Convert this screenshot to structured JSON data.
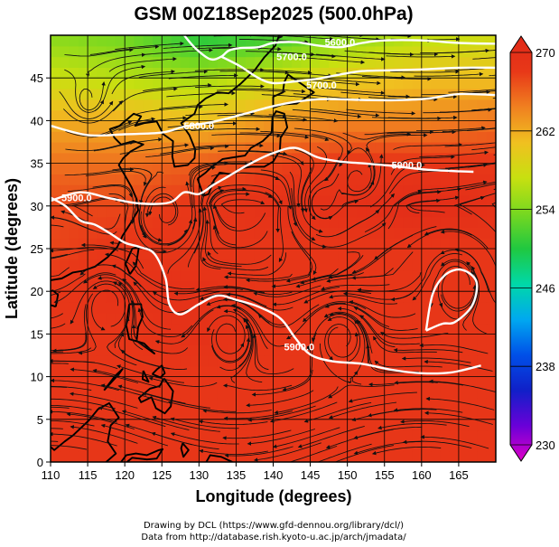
{
  "title": "GSM 00Z18Sep2025 (500.0hPa)",
  "credits": {
    "line1": "Drawing by DCL (https://www.gfd-dennou.org/library/dcl/)",
    "line2": "Data from http://database.rish.kyoto-u.ac.jp/arch/jmadata/"
  },
  "chart_data": {
    "type": "heatmap",
    "title": "GSM 00Z18Sep2025 (500.0hPa)",
    "xlabel": "Longitude (degrees)",
    "ylabel": "Latitude  (degrees)",
    "xlim": [
      110,
      170
    ],
    "ylim": [
      0,
      50
    ],
    "x_ticks": [
      110,
      115,
      120,
      125,
      130,
      135,
      140,
      145,
      150,
      155,
      160,
      165
    ],
    "y_ticks": [
      0,
      5,
      10,
      15,
      20,
      25,
      30,
      35,
      40,
      45
    ],
    "grid": true,
    "colorbar": {
      "min": 230,
      "max": 270,
      "tick_values": [
        230,
        238,
        246,
        254,
        262,
        270
      ],
      "tick_labels": [
        "230",
        "238",
        "246",
        "254",
        "262",
        "270"
      ],
      "colors": [
        "#e000c8",
        "#6a00d8",
        "#1020c8",
        "#0050e8",
        "#00a8f0",
        "#00d8a8",
        "#20c840",
        "#78d820",
        "#c8e010",
        "#f0c020",
        "#f08020",
        "#e83818",
        "#e02818"
      ]
    },
    "temperature_field": {
      "description": "air temperature (K) at 500 hPa",
      "lats": [
        0,
        5,
        10,
        15,
        20,
        25,
        30,
        35,
        40,
        45,
        50
      ],
      "lons": [
        110,
        120,
        130,
        140,
        150,
        160,
        170
      ],
      "values": [
        [
          267,
          267,
          267,
          267,
          267,
          267,
          267
        ],
        [
          267,
          267,
          267,
          267,
          267,
          267,
          267
        ],
        [
          267,
          267,
          267,
          267,
          267,
          267,
          267
        ],
        [
          267,
          267,
          268,
          267,
          267,
          267,
          267
        ],
        [
          267,
          268,
          268,
          267,
          267,
          267,
          267
        ],
        [
          266,
          267,
          267,
          267,
          267,
          267,
          267
        ],
        [
          266,
          266,
          267,
          268,
          268,
          269,
          268
        ],
        [
          264,
          264,
          265,
          266,
          267,
          267,
          267
        ],
        [
          261,
          261,
          260,
          262,
          263,
          263,
          264
        ],
        [
          257,
          256,
          255,
          257,
          259,
          260,
          260
        ],
        [
          254,
          253,
          250,
          251,
          254,
          256,
          257
        ]
      ]
    },
    "contours": [
      {
        "label": "5900.0",
        "points": [
          [
            109.5,
            31.2
          ],
          [
            112,
            30
          ],
          [
            114,
            28.3
          ],
          [
            116,
            27.8
          ],
          [
            118,
            26.8
          ],
          [
            120,
            25.7
          ],
          [
            122,
            25.2
          ],
          [
            124,
            24.4
          ],
          [
            125.5,
            21.5
          ],
          [
            126,
            18.5
          ],
          [
            127.5,
            17.3
          ],
          [
            130,
            18.5
          ],
          [
            132.5,
            19.5
          ],
          [
            135,
            19
          ],
          [
            138,
            18.2
          ],
          [
            141,
            16.8
          ],
          [
            143,
            14.5
          ],
          [
            145,
            12.6
          ],
          [
            148,
            11.8
          ],
          [
            152,
            11.5
          ],
          [
            156,
            10.8
          ],
          [
            160,
            10.4
          ],
          [
            164,
            10.5
          ],
          [
            168,
            11.3
          ]
        ]
      },
      {
        "label": "5900.0",
        "points": [
          [
            110,
            30.6
          ],
          [
            114,
            31.6
          ],
          [
            118,
            30.9
          ],
          [
            122,
            30.3
          ],
          [
            126,
            30.4
          ],
          [
            128,
            31.6
          ],
          [
            130,
            31.4
          ],
          [
            132,
            32.5
          ],
          [
            134,
            33.5
          ],
          [
            137,
            35
          ],
          [
            140,
            36.2
          ],
          [
            143,
            36.8
          ],
          [
            146,
            35.7
          ],
          [
            149,
            35.2
          ],
          [
            152,
            35
          ],
          [
            156,
            34.7
          ],
          [
            160,
            34.3
          ],
          [
            164,
            34.1
          ],
          [
            167,
            34
          ]
        ]
      },
      {
        "label": "",
        "points": [
          [
            160.6,
            15.4
          ],
          [
            161.5,
            19.7
          ],
          [
            163.3,
            22
          ],
          [
            165.5,
            22.5
          ],
          [
            167.4,
            21.1
          ],
          [
            166.8,
            18.3
          ],
          [
            164.5,
            16.4
          ],
          [
            162.8,
            16.2
          ],
          [
            160.6,
            15.4
          ]
        ]
      },
      {
        "label": "5800.0",
        "points": [
          [
            110,
            39.4
          ],
          [
            115,
            38.3
          ],
          [
            120,
            38.4
          ],
          [
            125,
            38.6
          ],
          [
            128,
            39.3
          ],
          [
            131,
            39.7
          ],
          [
            134,
            40.3
          ],
          [
            137,
            41
          ],
          [
            140,
            41.7
          ],
          [
            143,
            42.2
          ],
          [
            146,
            42.5
          ],
          [
            149,
            42.5
          ],
          [
            153,
            42.4
          ],
          [
            157,
            42.4
          ],
          [
            161,
            42.6
          ],
          [
            165,
            43.1
          ],
          [
            170,
            43
          ]
        ]
      },
      {
        "label": "5700.0",
        "points": [
          [
            133,
            47.5
          ],
          [
            135.5,
            46.4
          ],
          [
            138,
            45
          ],
          [
            140,
            44.4
          ],
          [
            143,
            44.6
          ],
          [
            146,
            44.9
          ],
          [
            149,
            45.4
          ],
          [
            152,
            45.8
          ],
          [
            156,
            45.9
          ],
          [
            160,
            46
          ],
          [
            165,
            46.2
          ],
          [
            170,
            46.2
          ]
        ]
      },
      {
        "label": "5600.0",
        "points": [
          [
            128,
            50
          ],
          [
            129.5,
            48.5
          ],
          [
            131.5,
            47.2
          ],
          [
            133,
            47.5
          ],
          [
            134,
            48.2
          ],
          [
            135.5,
            48.5
          ],
          [
            138,
            48.6
          ],
          [
            140,
            49.1
          ],
          [
            143,
            49.2
          ],
          [
            146,
            48.8
          ],
          [
            149,
            48.6
          ],
          [
            152,
            49.1
          ],
          [
            155,
            49.4
          ],
          [
            160,
            49.4
          ],
          [
            165,
            49.1
          ],
          [
            170,
            49
          ]
        ]
      }
    ],
    "contour_labels": [
      {
        "text": "5900.0",
        "lon": 113.5,
        "lat": 31
      },
      {
        "text": "5900.0",
        "lon": 143.5,
        "lat": 13.5
      },
      {
        "text": "5900.0",
        "lon": 158,
        "lat": 34.8
      },
      {
        "text": "5800.0",
        "lon": 130,
        "lat": 39.4
      },
      {
        "text": "5700.0",
        "lon": 146.5,
        "lat": 44.2
      },
      {
        "text": "5600.0",
        "lon": 149,
        "lat": 49.2
      },
      {
        "text": "5700.0",
        "lon": 142.5,
        "lat": 47.5
      }
    ],
    "circulations": [
      {
        "lon": 134,
        "lat": 15.2
      },
      {
        "lon": 117.8,
        "lat": 18.8
      },
      {
        "lon": 164.8,
        "lat": 21.2
      },
      {
        "lon": 146.5,
        "lat": 30.3
      },
      {
        "lon": 151.5,
        "lat": 33
      },
      {
        "lon": 149,
        "lat": 14.8
      },
      {
        "lon": 125.5,
        "lat": 29.2
      },
      {
        "lon": 115,
        "lat": 42
      }
    ]
  }
}
